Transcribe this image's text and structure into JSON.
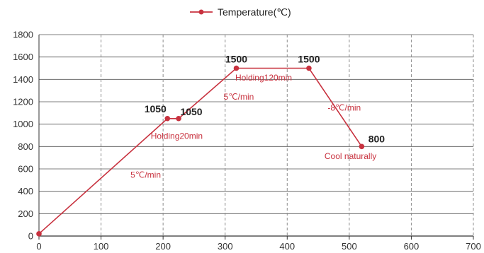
{
  "chart_data": {
    "type": "line",
    "legend": {
      "placement": "top-center",
      "label": "Temperature(℃)"
    },
    "color": "#c8323f",
    "x": [
      0,
      207,
      225,
      318,
      435,
      520
    ],
    "series": [
      {
        "name": "Temperature(℃)",
        "values": [
          20,
          1050,
          1050,
          1500,
          1500,
          800
        ]
      }
    ],
    "xlim": [
      0,
      700
    ],
    "ylim": [
      0,
      1800
    ],
    "x_ticks": [
      0,
      100,
      200,
      300,
      400,
      500,
      600,
      700
    ],
    "y_ticks": [
      0,
      200,
      400,
      600,
      800,
      1000,
      1200,
      1400,
      1600,
      1800
    ],
    "grid": {
      "horizontal": "solid",
      "vertical": "dashed"
    },
    "data_labels": [
      {
        "text": "1050",
        "x": 207,
        "y": 1050
      },
      {
        "text": "1050",
        "x": 225,
        "y": 1050
      },
      {
        "text": "1500",
        "x": 318,
        "y": 1500
      },
      {
        "text": "1500",
        "x": 435,
        "y": 1500
      },
      {
        "text": "800",
        "x": 520,
        "y": 800
      }
    ],
    "annotations": [
      {
        "text": "5℃/min",
        "x": 140,
        "y": 520
      },
      {
        "text": "Holding20min",
        "x": 190,
        "y": 870
      },
      {
        "text": "5℃/min",
        "x": 290,
        "y": 1220
      },
      {
        "text": "Holding120min",
        "x": 330,
        "y": 1390
      },
      {
        "text": "-8℃/min",
        "x": 460,
        "y": 1120
      },
      {
        "text": "Cool naturally",
        "x": 470,
        "y": 690
      }
    ]
  }
}
